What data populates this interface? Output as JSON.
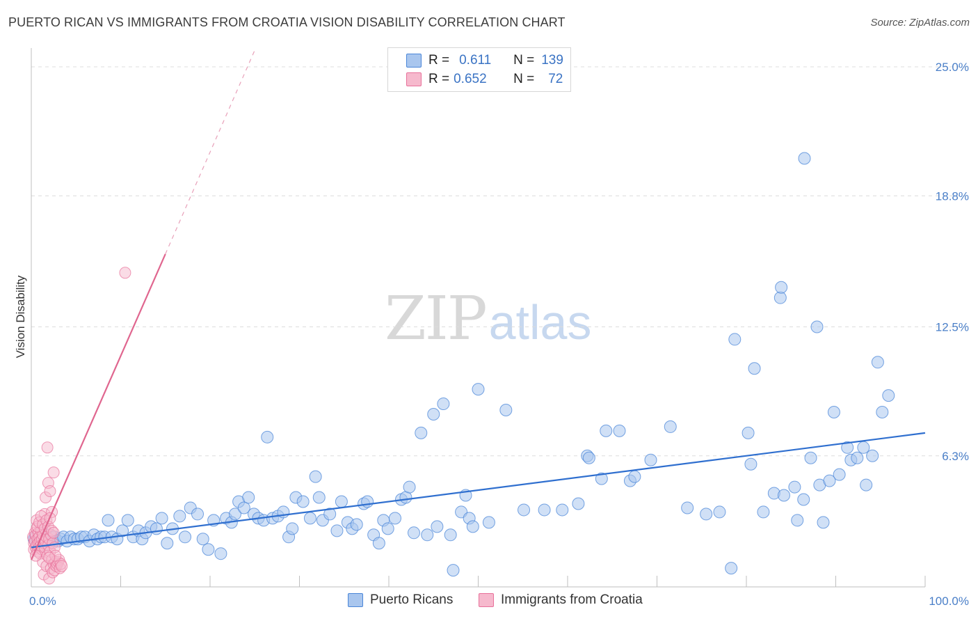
{
  "header": {
    "title": "PUERTO RICAN VS IMMIGRANTS FROM CROATIA VISION DISABILITY CORRELATION CHART",
    "source": "Source: ZipAtlas.com"
  },
  "watermark": {
    "zip": "ZIP",
    "atlas": "atlas"
  },
  "legend": {
    "rows": [
      {
        "r_key": "R =",
        "r_value": "0.611",
        "n_key": "N =",
        "n_value": "139"
      },
      {
        "r_key": "R =",
        "r_value": "0.652",
        "n_key": "N =",
        "n_value": "72"
      }
    ]
  },
  "chart_data": {
    "type": "scatter",
    "title": "PUERTO RICAN VS IMMIGRANTS FROM CROATIA VISION DISABILITY CORRELATION CHART",
    "xlabel": "",
    "ylabel": "Vision Disability",
    "xlim": [
      0,
      100
    ],
    "ylim": [
      0,
      26
    ],
    "x_tick_labels": [
      "0.0%",
      "100.0%"
    ],
    "y_ticks": [
      6.3,
      12.5,
      18.8,
      25.0
    ],
    "y_tick_labels": [
      "6.3%",
      "12.5%",
      "18.8%",
      "25.0%"
    ],
    "grid": "horizontal dashed",
    "legend_position": "top-center",
    "colors": {
      "blue": "#4a86d8",
      "blue_fill": "#a9c6ee",
      "pink": "#e8709a",
      "pink_fill": "#f6b9cd"
    },
    "series": [
      {
        "name": "Puerto Ricans",
        "color": "#4a86d8",
        "r": 0.611,
        "n": 139,
        "trend": {
          "x": [
            0,
            100
          ],
          "y": [
            1.9,
            7.4
          ]
        },
        "points": [
          [
            0.3,
            2.3
          ],
          [
            0.5,
            2.4
          ],
          [
            0.7,
            2.2
          ],
          [
            0.9,
            2.5
          ],
          [
            1.1,
            2.3
          ],
          [
            1.3,
            2.6
          ],
          [
            1.5,
            2.2
          ],
          [
            1.7,
            2.4
          ],
          [
            1.9,
            2.3
          ],
          [
            2.1,
            2.5
          ],
          [
            2.4,
            2.2
          ],
          [
            2.6,
            2.4
          ],
          [
            3.0,
            2.2
          ],
          [
            3.3,
            2.3
          ],
          [
            3.6,
            2.4
          ],
          [
            4.0,
            2.2
          ],
          [
            4.4,
            2.4
          ],
          [
            4.8,
            2.3
          ],
          [
            5.2,
            2.3
          ],
          [
            5.6,
            2.4
          ],
          [
            6.0,
            2.4
          ],
          [
            6.5,
            2.2
          ],
          [
            7.0,
            2.5
          ],
          [
            7.4,
            2.3
          ],
          [
            7.8,
            2.4
          ],
          [
            8.2,
            2.4
          ],
          [
            8.6,
            3.2
          ],
          [
            9.0,
            2.4
          ],
          [
            9.6,
            2.3
          ],
          [
            10.2,
            2.7
          ],
          [
            10.8,
            3.2
          ],
          [
            11.4,
            2.4
          ],
          [
            12.0,
            2.7
          ],
          [
            12.4,
            2.3
          ],
          [
            12.8,
            2.6
          ],
          [
            13.4,
            2.9
          ],
          [
            14.0,
            2.8
          ],
          [
            14.6,
            3.3
          ],
          [
            15.2,
            2.1
          ],
          [
            15.8,
            2.8
          ],
          [
            16.6,
            3.4
          ],
          [
            17.2,
            2.4
          ],
          [
            17.8,
            3.8
          ],
          [
            18.6,
            3.5
          ],
          [
            19.2,
            2.3
          ],
          [
            19.8,
            1.8
          ],
          [
            20.4,
            3.2
          ],
          [
            21.2,
            1.6
          ],
          [
            21.8,
            3.3
          ],
          [
            22.4,
            3.1
          ],
          [
            22.8,
            3.5
          ],
          [
            23.2,
            4.1
          ],
          [
            23.8,
            3.8
          ],
          [
            24.3,
            4.3
          ],
          [
            24.9,
            3.5
          ],
          [
            25.4,
            3.3
          ],
          [
            26.0,
            3.2
          ],
          [
            26.4,
            7.2
          ],
          [
            27.0,
            3.3
          ],
          [
            27.6,
            3.4
          ],
          [
            28.2,
            3.6
          ],
          [
            28.8,
            2.4
          ],
          [
            29.2,
            2.8
          ],
          [
            29.6,
            4.3
          ],
          [
            30.4,
            4.1
          ],
          [
            31.2,
            3.3
          ],
          [
            31.8,
            5.3
          ],
          [
            32.2,
            4.3
          ],
          [
            32.6,
            3.2
          ],
          [
            33.4,
            3.5
          ],
          [
            34.2,
            2.7
          ],
          [
            34.7,
            4.1
          ],
          [
            35.4,
            3.1
          ],
          [
            35.9,
            2.8
          ],
          [
            36.4,
            3.0
          ],
          [
            37.2,
            4.0
          ],
          [
            37.6,
            4.1
          ],
          [
            38.3,
            2.5
          ],
          [
            38.9,
            2.1
          ],
          [
            39.4,
            3.2
          ],
          [
            39.9,
            2.8
          ],
          [
            40.7,
            3.3
          ],
          [
            41.4,
            4.2
          ],
          [
            41.9,
            4.3
          ],
          [
            42.3,
            4.8
          ],
          [
            42.8,
            2.6
          ],
          [
            43.6,
            7.4
          ],
          [
            44.3,
            2.5
          ],
          [
            45.0,
            8.3
          ],
          [
            45.4,
            2.9
          ],
          [
            46.1,
            8.8
          ],
          [
            46.9,
            2.5
          ],
          [
            47.2,
            0.8
          ],
          [
            48.1,
            3.6
          ],
          [
            48.6,
            4.4
          ],
          [
            49.0,
            3.3
          ],
          [
            49.4,
            2.9
          ],
          [
            50.0,
            9.5
          ],
          [
            51.2,
            3.1
          ],
          [
            53.1,
            8.5
          ],
          [
            55.1,
            3.7
          ],
          [
            57.4,
            3.7
          ],
          [
            59.4,
            3.7
          ],
          [
            61.2,
            4.0
          ],
          [
            62.2,
            6.3
          ],
          [
            62.4,
            6.2
          ],
          [
            63.8,
            5.2
          ],
          [
            64.3,
            7.5
          ],
          [
            65.8,
            7.5
          ],
          [
            67.0,
            5.1
          ],
          [
            67.5,
            5.3
          ],
          [
            69.3,
            6.1
          ],
          [
            71.5,
            7.7
          ],
          [
            73.4,
            3.8
          ],
          [
            75.5,
            3.5
          ],
          [
            77.0,
            3.6
          ],
          [
            78.3,
            0.9
          ],
          [
            78.7,
            11.9
          ],
          [
            80.2,
            7.4
          ],
          [
            80.5,
            5.9
          ],
          [
            80.9,
            10.5
          ],
          [
            81.9,
            3.6
          ],
          [
            83.1,
            4.5
          ],
          [
            83.8,
            13.9
          ],
          [
            83.9,
            14.4
          ],
          [
            84.2,
            4.4
          ],
          [
            85.4,
            4.8
          ],
          [
            85.7,
            3.2
          ],
          [
            86.4,
            4.2
          ],
          [
            86.5,
            20.6
          ],
          [
            87.2,
            6.2
          ],
          [
            87.9,
            12.5
          ],
          [
            88.2,
            4.9
          ],
          [
            88.6,
            3.1
          ],
          [
            89.3,
            5.1
          ],
          [
            89.8,
            8.4
          ],
          [
            90.4,
            5.4
          ],
          [
            91.3,
            6.7
          ],
          [
            91.7,
            6.1
          ],
          [
            92.4,
            6.2
          ],
          [
            93.1,
            6.7
          ],
          [
            93.4,
            4.9
          ],
          [
            94.1,
            6.3
          ],
          [
            94.7,
            10.8
          ],
          [
            95.2,
            8.4
          ],
          [
            95.9,
            9.2
          ]
        ]
      },
      {
        "name": "Immigrants from Croatia",
        "color": "#e8709a",
        "r": 0.652,
        "n": 72,
        "trend": {
          "x": [
            0,
            15
          ],
          "y": [
            1.3,
            16.0
          ]
        },
        "trend_extension": {
          "x": [
            15,
            25
          ],
          "y": [
            16.0,
            25.8
          ]
        },
        "points": [
          [
            0.2,
            2.4
          ],
          [
            0.3,
            2.1
          ],
          [
            0.3,
            1.8
          ],
          [
            0.4,
            2.6
          ],
          [
            0.4,
            2.2
          ],
          [
            0.5,
            1.9
          ],
          [
            0.5,
            2.5
          ],
          [
            0.6,
            2.0
          ],
          [
            0.6,
            2.8
          ],
          [
            0.7,
            1.7
          ],
          [
            0.7,
            2.3
          ],
          [
            0.8,
            2.1
          ],
          [
            0.8,
            2.6
          ],
          [
            0.9,
            1.9
          ],
          [
            0.9,
            2.4
          ],
          [
            1.0,
            1.6
          ],
          [
            1.0,
            2.2
          ],
          [
            1.1,
            2.0
          ],
          [
            1.1,
            2.7
          ],
          [
            1.2,
            1.8
          ],
          [
            1.2,
            2.3
          ],
          [
            1.3,
            1.2
          ],
          [
            1.3,
            2.5
          ],
          [
            1.4,
            2.1
          ],
          [
            1.4,
            0.6
          ],
          [
            1.5,
            1.9
          ],
          [
            1.5,
            3.5
          ],
          [
            1.6,
            2.2
          ],
          [
            1.6,
            4.3
          ],
          [
            1.7,
            1.0
          ],
          [
            1.7,
            2.4
          ],
          [
            1.8,
            1.5
          ],
          [
            1.8,
            6.7
          ],
          [
            1.9,
            2.0
          ],
          [
            1.9,
            5.0
          ],
          [
            2.0,
            0.4
          ],
          [
            2.0,
            2.3
          ],
          [
            2.1,
            1.7
          ],
          [
            2.1,
            4.6
          ],
          [
            2.2,
            0.9
          ],
          [
            2.2,
            2.5
          ],
          [
            2.3,
            1.3
          ],
          [
            2.3,
            3.6
          ],
          [
            2.4,
            0.7
          ],
          [
            2.4,
            2.1
          ],
          [
            2.5,
            1.1
          ],
          [
            2.5,
            5.5
          ],
          [
            2.6,
            0.8
          ],
          [
            2.6,
            1.9
          ],
          [
            2.7,
            1.2
          ],
          [
            2.8,
            1.0
          ],
          [
            2.9,
            1.1
          ],
          [
            3.0,
            1.2
          ],
          [
            3.1,
            1.3
          ],
          [
            3.2,
            0.9
          ],
          [
            3.3,
            1.1
          ],
          [
            3.4,
            1.0
          ],
          [
            0.5,
            1.5
          ],
          [
            0.6,
            3.2
          ],
          [
            0.7,
            2.9
          ],
          [
            0.9,
            3.1
          ],
          [
            1.1,
            3.4
          ],
          [
            1.3,
            3.0
          ],
          [
            1.5,
            2.8
          ],
          [
            1.7,
            3.2
          ],
          [
            1.9,
            2.9
          ],
          [
            2.1,
            3.3
          ],
          [
            2.3,
            2.7
          ],
          [
            2.5,
            2.6
          ],
          [
            2.7,
            1.5
          ],
          [
            10.5,
            15.1
          ],
          [
            2.0,
            1.4
          ]
        ]
      }
    ]
  }
}
